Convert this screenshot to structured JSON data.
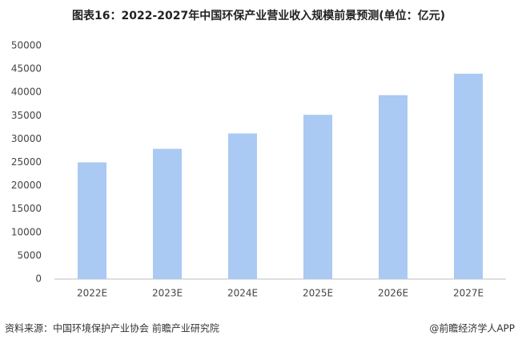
{
  "chart_data": {
    "type": "bar",
    "title": "图表16：2022-2027年中国环保产业营业收入规模前景预测(单位：亿元)",
    "categories": [
      "2022E",
      "2023E",
      "2024E",
      "2025E",
      "2026E",
      "2027E"
    ],
    "values": [
      25000,
      27900,
      31200,
      35200,
      39400,
      44000
    ],
    "color": "#aac9f3",
    "ylim": [
      0,
      50000
    ],
    "yticks": [
      0,
      5000,
      10000,
      15000,
      20000,
      25000,
      30000,
      35000,
      40000,
      45000,
      50000
    ],
    "grid": false,
    "source": "资料来源：中国环境保护产业协会 前瞻产业研究院",
    "credit": "@前瞻经济学人APP"
  }
}
